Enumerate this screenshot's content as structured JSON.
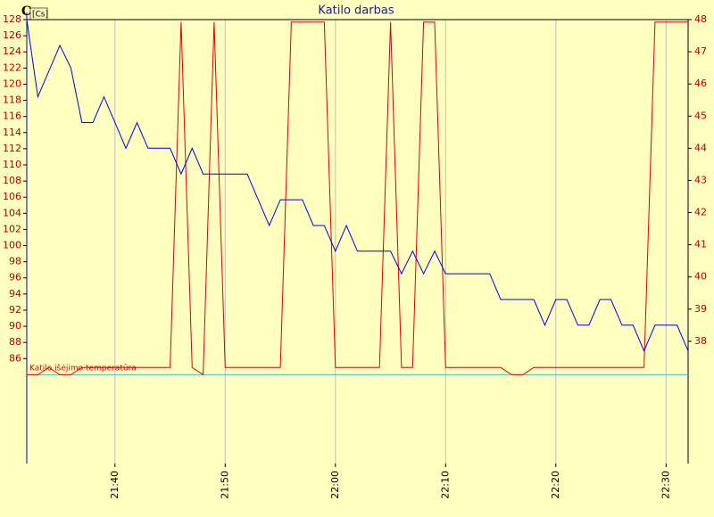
{
  "chart_data": {
    "type": "line",
    "title": "Katilo darbas",
    "y_axis_label": "C",
    "unit_label": "[Cs]",
    "annotation": "Katilo išėjimo temperatūra",
    "xlim": [
      "21:32",
      "22:32"
    ],
    "xticks": [
      "21:40",
      "21:50",
      "22:00",
      "22:10",
      "22:20",
      "22:30"
    ],
    "ylim": [
      73,
      128
    ],
    "yticks": [
      86,
      88,
      90,
      92,
      94,
      96,
      98,
      100,
      102,
      104,
      106,
      108,
      110,
      112,
      114,
      116,
      118,
      120,
      122,
      124,
      126,
      128
    ],
    "y2lim": [
      34.2,
      48
    ],
    "y2ticks": [
      38,
      39,
      40,
      41,
      42,
      43,
      44,
      45,
      46,
      47,
      48
    ],
    "grid": true,
    "reference_line": {
      "value": 84,
      "color": "#40c0c0"
    },
    "series": [
      {
        "color": "#e00000",
        "x": [
          "21:32",
          "21:33",
          "21:34",
          "21:35",
          "21:36",
          "21:37",
          "21:45",
          "21:46",
          "21:47",
          "21:48",
          "21:49",
          "21:50",
          "21:55",
          "21:56",
          "21:59",
          "22:00",
          "22:04",
          "22:05",
          "22:06",
          "22:07",
          "22:08",
          "22:09",
          "22:10",
          "22:15",
          "22:16",
          "22:17",
          "22:18",
          "22:28",
          "22:29",
          "22:32"
        ],
        "values": [
          84,
          84,
          84.9,
          84,
          84,
          84.9,
          84.9,
          127.7,
          84.9,
          84,
          127.7,
          84.9,
          84.9,
          127.7,
          127.7,
          84.9,
          84.9,
          127.7,
          84.9,
          84.9,
          127.7,
          127.7,
          84.9,
          84.9,
          84,
          84,
          84.9,
          84.9,
          127.7,
          127.7
        ]
      },
      {
        "color": "#0000e0",
        "axis": "y2",
        "x": [
          "21:32",
          "21:33",
          "21:35",
          "21:36",
          "21:37",
          "21:38",
          "21:39",
          "21:41",
          "21:42",
          "21:43",
          "21:45",
          "21:46",
          "21:47",
          "21:48",
          "21:52",
          "21:54",
          "21:55",
          "21:57",
          "21:58",
          "21:59",
          "22:00",
          "22:01",
          "22:02",
          "22:05",
          "22:06",
          "22:07",
          "22:08",
          "22:09",
          "22:10",
          "22:14",
          "22:15",
          "22:18",
          "22:19",
          "22:20",
          "22:21",
          "22:22",
          "22:23",
          "22:24",
          "22:25",
          "22:26",
          "22:27",
          "22:28",
          "22:29",
          "22:31",
          "22:32"
        ],
        "values": [
          48,
          45.6,
          47.2,
          46.5,
          44.8,
          44.8,
          45.6,
          44,
          44.8,
          44,
          44,
          43.2,
          44,
          43.2,
          43.2,
          41.6,
          42.4,
          42.4,
          41.6,
          41.6,
          40.8,
          41.6,
          40.8,
          40.8,
          40.1,
          40.8,
          40.1,
          40.8,
          40.1,
          40.1,
          39.3,
          39.3,
          38.5,
          39.3,
          39.3,
          38.5,
          38.5,
          39.3,
          39.3,
          38.5,
          38.5,
          37.7,
          38.5,
          38.5,
          37.7
        ]
      }
    ]
  }
}
